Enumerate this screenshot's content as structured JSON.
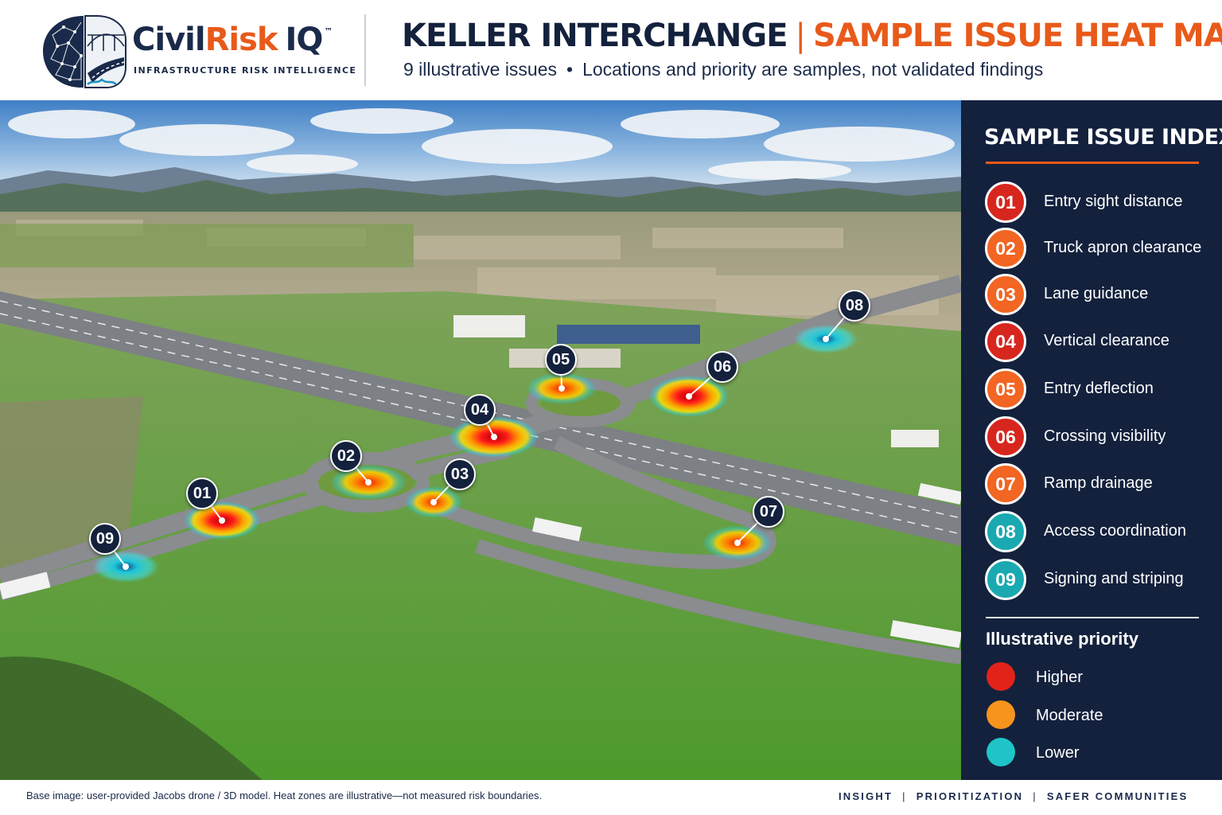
{
  "header": {
    "brand_civil": "Civil",
    "brand_risk": "Risk",
    "brand_iq": "IQ",
    "brand_tm": "™",
    "tagline": "INFRASTRUCTURE RISK INTELLIGENCE",
    "title_main": "KELLER INTERCHANGE",
    "title_sep": "|",
    "title_accent": "SAMPLE ISSUE HEAT MAP",
    "subtitle_count": "9 illustrative issues",
    "subtitle_dot": "•",
    "subtitle_note": "Locations and priority are samples, not validated findings"
  },
  "colors": {
    "navy": "#13213d",
    "accent_orange": "#e85a1a",
    "priority_higher": "#e2231a",
    "priority_moderate": "#f7941d",
    "priority_lower": "#1ec4c8",
    "badge_red": "#d7261e",
    "badge_orange": "#f26522",
    "badge_teal": "#1aa9b0"
  },
  "map": {
    "markers": [
      {
        "number": "01",
        "priority": "higher"
      },
      {
        "number": "02",
        "priority": "moderate"
      },
      {
        "number": "03",
        "priority": "moderate"
      },
      {
        "number": "04",
        "priority": "higher"
      },
      {
        "number": "05",
        "priority": "moderate"
      },
      {
        "number": "06",
        "priority": "higher"
      },
      {
        "number": "07",
        "priority": "moderate"
      },
      {
        "number": "08",
        "priority": "lower"
      },
      {
        "number": "09",
        "priority": "lower"
      }
    ]
  },
  "sidebar": {
    "title": "SAMPLE ISSUE INDEX",
    "issues": [
      {
        "number": "01",
        "label": "Entry sight distance",
        "badge_color": "#d7261e"
      },
      {
        "number": "02",
        "label": "Truck apron clearance",
        "badge_color": "#f26522"
      },
      {
        "number": "03",
        "label": "Lane guidance",
        "badge_color": "#f26522"
      },
      {
        "number": "04",
        "label": "Vertical clearance",
        "badge_color": "#d7261e"
      },
      {
        "number": "05",
        "label": "Entry deflection",
        "badge_color": "#f26522"
      },
      {
        "number": "06",
        "label": "Crossing visibility",
        "badge_color": "#d7261e"
      },
      {
        "number": "07",
        "label": "Ramp drainage",
        "badge_color": "#f26522"
      },
      {
        "number": "08",
        "label": "Access coordination",
        "badge_color": "#1aa9b0"
      },
      {
        "number": "09",
        "label": "Signing and striping",
        "badge_color": "#1aa9b0"
      }
    ],
    "priority_title": "Illustrative priority",
    "priority_levels": [
      {
        "label": "Higher",
        "color": "#e2231a"
      },
      {
        "label": "Moderate",
        "color": "#f7941d"
      },
      {
        "label": "Lower",
        "color": "#1ec4c8"
      }
    ]
  },
  "footer": {
    "note": "Base image: user-provided Jacobs drone / 3D model. Heat zones are illustrative—not measured risk boundaries.",
    "tag1": "INSIGHT",
    "tag2": "PRIORITIZATION",
    "tag3": "SAFER COMMUNITIES",
    "separator": "|"
  }
}
